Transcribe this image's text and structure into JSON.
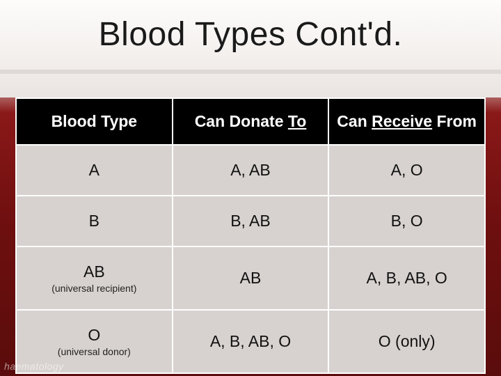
{
  "title": "Blood Types Cont'd.",
  "watermark": "haematology",
  "columns": [
    {
      "plain": "Blood Type",
      "prefix": "",
      "ul": "",
      "suffix": ""
    },
    {
      "plain": "",
      "prefix": "Can Donate ",
      "ul": "To",
      "suffix": ""
    },
    {
      "plain": "",
      "prefix": "Can ",
      "ul": "Receive",
      "suffix": " From"
    }
  ],
  "rows": [
    {
      "type": "A",
      "sub": "",
      "donate": "A, AB",
      "receive": "A, O"
    },
    {
      "type": "B",
      "sub": "",
      "donate": "B, AB",
      "receive": "B, O"
    },
    {
      "type": "AB",
      "sub": "(universal recipient)",
      "donate": "AB",
      "receive": "A, B, AB, O"
    },
    {
      "type": "O",
      "sub": "(universal donor)",
      "donate": "A, B, AB, O",
      "receive": "O (only)"
    }
  ]
}
